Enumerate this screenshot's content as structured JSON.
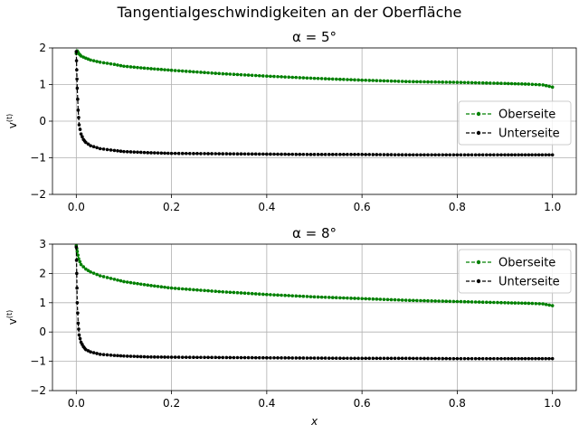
{
  "figure": {
    "suptitle": "Tangentialgeschwindigkeiten an der Oberfläche"
  },
  "chart_data": [
    {
      "type": "line",
      "title": "α = 5°",
      "xlabel": "",
      "ylabel": "v(t)",
      "xlim": [
        -0.05,
        1.05
      ],
      "ylim": [
        -2,
        2
      ],
      "xticks": [
        "0.0",
        "0.2",
        "0.4",
        "0.6",
        "0.8",
        "1.0"
      ],
      "yticks": [
        "2",
        "1",
        "0",
        "−1",
        "−2"
      ],
      "grid": true,
      "legend": "center-right",
      "series": [
        {
          "name": "Oberseite",
          "color": "#008000",
          "style": "dashed-dot-marker",
          "x": [
            0.0,
            0.002,
            0.005,
            0.01,
            0.02,
            0.03,
            0.05,
            0.08,
            0.1,
            0.15,
            0.2,
            0.3,
            0.4,
            0.5,
            0.6,
            0.7,
            0.8,
            0.9,
            0.95,
            0.98,
            1.0
          ],
          "y": [
            1.85,
            1.92,
            1.85,
            1.78,
            1.72,
            1.67,
            1.61,
            1.55,
            1.5,
            1.44,
            1.39,
            1.3,
            1.23,
            1.17,
            1.12,
            1.08,
            1.06,
            1.03,
            1.01,
            0.99,
            0.93
          ]
        },
        {
          "name": "Unterseite",
          "color": "#000000",
          "style": "dashed-dot-marker",
          "x": [
            0.0,
            0.001,
            0.002,
            0.004,
            0.006,
            0.01,
            0.015,
            0.02,
            0.03,
            0.05,
            0.08,
            0.1,
            0.15,
            0.2,
            0.3,
            0.4,
            0.5,
            0.6,
            0.7,
            0.8,
            0.9,
            0.95,
            1.0
          ],
          "y": [
            1.9,
            1.4,
            0.9,
            0.3,
            -0.1,
            -0.35,
            -0.5,
            -0.58,
            -0.67,
            -0.75,
            -0.8,
            -0.83,
            -0.86,
            -0.88,
            -0.89,
            -0.9,
            -0.91,
            -0.91,
            -0.92,
            -0.92,
            -0.92,
            -0.92,
            -0.92
          ]
        }
      ]
    },
    {
      "type": "line",
      "title": "α = 8°",
      "xlabel": "x",
      "ylabel": "v(t)",
      "xlim": [
        -0.05,
        1.05
      ],
      "ylim": [
        -2,
        3
      ],
      "xticks": [
        "0.0",
        "0.2",
        "0.4",
        "0.6",
        "0.8",
        "1.0"
      ],
      "yticks": [
        "3",
        "2",
        "1",
        "0",
        "−1",
        "−2"
      ],
      "grid": true,
      "legend": "top-right",
      "series": [
        {
          "name": "Oberseite",
          "color": "#008000",
          "style": "dashed-dot-marker",
          "x": [
            0.0,
            0.002,
            0.005,
            0.01,
            0.02,
            0.03,
            0.05,
            0.08,
            0.1,
            0.15,
            0.2,
            0.3,
            0.4,
            0.5,
            0.6,
            0.7,
            0.8,
            0.9,
            0.95,
            0.98,
            1.0
          ],
          "y": [
            2.95,
            2.75,
            2.5,
            2.3,
            2.15,
            2.05,
            1.92,
            1.8,
            1.72,
            1.6,
            1.5,
            1.38,
            1.28,
            1.2,
            1.14,
            1.08,
            1.04,
            1.0,
            0.98,
            0.96,
            0.9
          ]
        },
        {
          "name": "Unterseite",
          "color": "#000000",
          "style": "dashed-dot-marker",
          "x": [
            0.0,
            0.001,
            0.002,
            0.004,
            0.006,
            0.01,
            0.015,
            0.02,
            0.03,
            0.05,
            0.08,
            0.1,
            0.15,
            0.2,
            0.3,
            0.4,
            0.5,
            0.6,
            0.7,
            0.8,
            0.9,
            0.95,
            1.0
          ],
          "y": [
            2.9,
            2.0,
            1.0,
            0.3,
            -0.1,
            -0.35,
            -0.5,
            -0.6,
            -0.68,
            -0.76,
            -0.8,
            -0.82,
            -0.85,
            -0.86,
            -0.87,
            -0.88,
            -0.89,
            -0.9,
            -0.9,
            -0.91,
            -0.91,
            -0.91,
            -0.91
          ]
        }
      ]
    }
  ]
}
